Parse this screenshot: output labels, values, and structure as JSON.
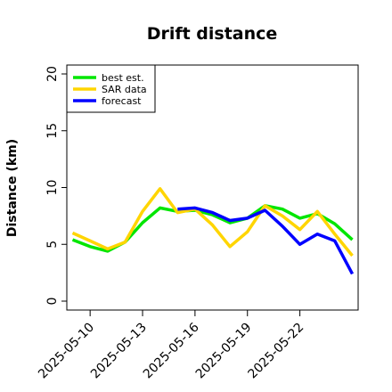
{
  "chart_data": {
    "type": "line",
    "title": "Drift distance",
    "xlabel": "",
    "ylabel": "Distance (km)",
    "ylim": [
      0,
      20
    ],
    "xlim": [
      "2025-05-08T16:00",
      "2025-05-25T08:00"
    ],
    "y_ticks": [
      0,
      5,
      10,
      15,
      20
    ],
    "x_ticks": [
      "2025-05-10",
      "2025-05-13",
      "2025-05-16",
      "2025-05-19",
      "2025-05-22"
    ],
    "grid": false,
    "legend_position": "top-left",
    "x": [
      "2025-05-09",
      "2025-05-10",
      "2025-05-11",
      "2025-05-12",
      "2025-05-13",
      "2025-05-14",
      "2025-05-15",
      "2025-05-16",
      "2025-05-17",
      "2025-05-18",
      "2025-05-19",
      "2025-05-20",
      "2025-05-21",
      "2025-05-22",
      "2025-05-23",
      "2025-05-24",
      "2025-05-25"
    ],
    "series": [
      {
        "name": "best est.",
        "color": "#00e600",
        "values": [
          5.4,
          4.8,
          4.4,
          5.2,
          6.9,
          8.2,
          7.9,
          8.0,
          7.6,
          6.9,
          7.3,
          8.4,
          8.1,
          7.3,
          7.7,
          6.8,
          5.4
        ]
      },
      {
        "name": "SAR data",
        "color": "#ffd500",
        "values": [
          6.0,
          5.3,
          4.6,
          5.2,
          7.9,
          9.9,
          7.8,
          8.1,
          6.7,
          4.8,
          6.1,
          8.4,
          7.5,
          6.3,
          7.9,
          5.9,
          4.0
        ]
      },
      {
        "name": "forecast",
        "color": "#0000ff",
        "values": [
          null,
          null,
          null,
          null,
          null,
          null,
          8.1,
          8.2,
          7.8,
          7.1,
          7.3,
          8.0,
          6.6,
          5.0,
          5.9,
          5.3,
          2.4
        ]
      }
    ]
  }
}
